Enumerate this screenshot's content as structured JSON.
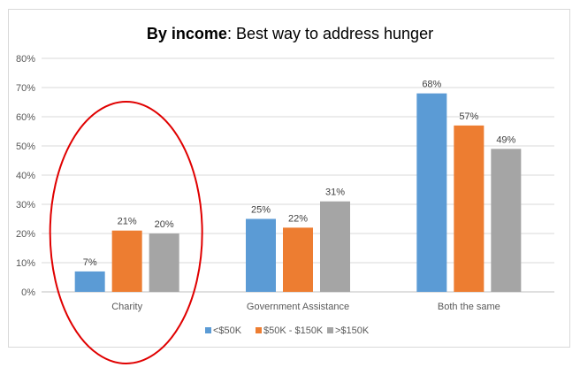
{
  "chart_data": {
    "type": "bar",
    "title_bold": "By income",
    "title_rest": ": Best way to address hunger",
    "categories": [
      "Charity",
      "Government Assistance",
      "Both the same"
    ],
    "series": [
      {
        "name": "<$50K",
        "color": "#5b9bd5",
        "values": [
          7,
          25,
          68
        ],
        "labels": [
          "7%",
          "25%",
          "68%"
        ]
      },
      {
        "name": "$50K - $150K",
        "color": "#ed7d31",
        "values": [
          21,
          22,
          57
        ],
        "labels": [
          "21%",
          "22%",
          "57%"
        ]
      },
      {
        "name": ">$150K",
        "color": "#a5a5a5",
        "values": [
          20,
          31,
          49
        ],
        "labels": [
          "20%",
          "31%",
          "49%"
        ]
      }
    ],
    "yticks": [
      "0%",
      "10%",
      "20%",
      "30%",
      "40%",
      "50%",
      "60%",
      "70%",
      "80%"
    ],
    "ylim": [
      0,
      80
    ],
    "grid": true,
    "legend_position": "bottom",
    "annotation": {
      "shape": "ellipse",
      "color": "#e00000",
      "target": "Charity"
    }
  }
}
